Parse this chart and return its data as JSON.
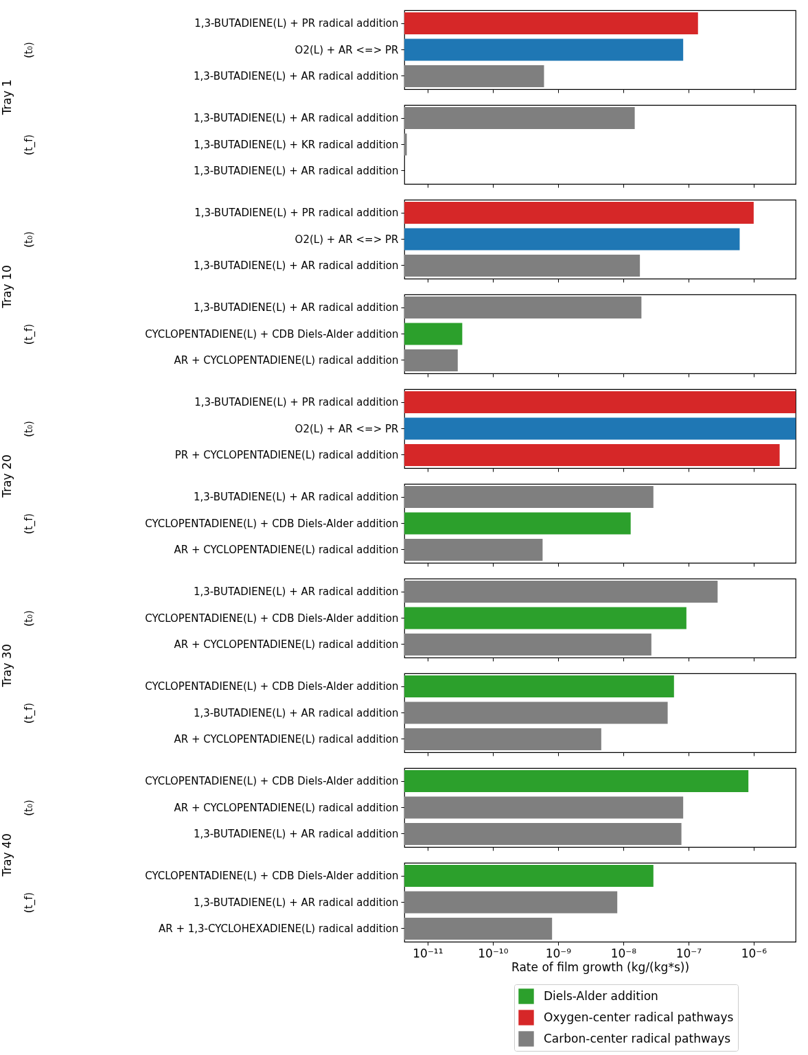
{
  "chart_data": [
    {
      "type": "bar",
      "orientation": "horizontal",
      "log": "x",
      "ylabel": "(t₀)",
      "annotations": [
        "Tray 1"
      ],
      "tick_labels": "y",
      "legend": false,
      "xlim": [
        4.4e-12,
        4.4e-06
      ],
      "xticks": [
        1e-11,
        1e-10,
        1e-09,
        1e-08,
        1e-07,
        1e-06
      ],
      "categories": [
        "1,3-BUTADIENE(L) + PR radical addition",
        "O2(L) + AR <=> PR",
        "1,3-BUTADIENE(L) + AR radical addition"
      ],
      "series": [
        {
          "color": "#d62728",
          "values": [
            1.4e-07,
            null,
            null
          ]
        },
        {
          "color": "#1f77b4",
          "values": [
            null,
            8.3e-08,
            null
          ]
        },
        {
          "color": "#7f7f7f",
          "values": [
            null,
            null,
            6.1e-10
          ]
        }
      ]
    },
    {
      "type": "bar",
      "orientation": "horizontal",
      "log": "x",
      "ylabel": "(t_f)",
      "tick_labels": "y",
      "legend": false,
      "xlim": [
        4.4e-12,
        4.4e-06
      ],
      "xticks": [
        1e-11,
        1e-10,
        1e-09,
        1e-08,
        1e-07,
        1e-06
      ],
      "categories": [
        "1,3-BUTADIENE(L) + AR radical addition",
        "1,3-BUTADIENE(L) + KR radical addition",
        "1,3-BUTADIENE(L) + AR radical addition"
      ],
      "series": [
        {
          "color": "#7f7f7f",
          "values": [
            1.5e-08,
            4.8e-12,
            null
          ]
        }
      ]
    },
    {
      "type": "bar",
      "orientation": "horizontal",
      "log": "x",
      "ylabel": "(t₀)",
      "annotations": [
        "Tray 10"
      ],
      "tick_labels": "y",
      "legend": false,
      "xlim": [
        4.4e-12,
        4.4e-06
      ],
      "xticks": [
        1e-11,
        1e-10,
        1e-09,
        1e-08,
        1e-07,
        1e-06
      ],
      "categories": [
        "1,3-BUTADIENE(L) + PR radical addition",
        "O2(L) + AR <=> PR",
        "1,3-BUTADIENE(L) + AR radical addition"
      ],
      "series": [
        {
          "color": "#d62728",
          "values": [
            1e-06,
            null,
            null
          ]
        },
        {
          "color": "#1f77b4",
          "values": [
            null,
            6.1e-07,
            null
          ]
        },
        {
          "color": "#7f7f7f",
          "values": [
            null,
            null,
            1.8e-08
          ]
        }
      ]
    },
    {
      "type": "bar",
      "orientation": "horizontal",
      "log": "x",
      "ylabel": "(t_f)",
      "tick_labels": "y",
      "legend": false,
      "xlim": [
        4.4e-12,
        4.4e-06
      ],
      "xticks": [
        1e-11,
        1e-10,
        1e-09,
        1e-08,
        1e-07,
        1e-06
      ],
      "categories": [
        "1,3-BUTADIENE(L) + AR radical addition",
        "CYCLOPENTADIENE(L) + CDB Diels-Alder addition",
        "AR + CYCLOPENTADIENE(L) radical addition"
      ],
      "series": [
        {
          "color": "#2ca02c",
          "values": [
            null,
            3.4e-11,
            null
          ]
        },
        {
          "color": "#7f7f7f",
          "values": [
            1.9e-08,
            null,
            2.9e-11
          ]
        }
      ]
    },
    {
      "type": "bar",
      "orientation": "horizontal",
      "log": "x",
      "ylabel": "(t₀)",
      "annotations": [
        "Tray 20"
      ],
      "tick_labels": "y",
      "legend": false,
      "xlim": [
        4.4e-12,
        4.4e-06
      ],
      "xticks": [
        1e-11,
        1e-10,
        1e-09,
        1e-08,
        1e-07,
        1e-06
      ],
      "categories": [
        "1,3-BUTADIENE(L) + PR radical addition",
        "O2(L) + AR <=> PR",
        "PR + CYCLOPENTADIENE(L) radical addition"
      ],
      "series": [
        {
          "color": "#d62728",
          "values": [
            4.4e-06,
            null,
            2.5e-06
          ]
        },
        {
          "color": "#1f77b4",
          "values": [
            null,
            4.4e-06,
            null
          ]
        }
      ]
    },
    {
      "type": "bar",
      "orientation": "horizontal",
      "log": "x",
      "ylabel": "(t_f)",
      "tick_labels": "y",
      "legend": false,
      "xlim": [
        4.4e-12,
        4.4e-06
      ],
      "xticks": [
        1e-11,
        1e-10,
        1e-09,
        1e-08,
        1e-07,
        1e-06
      ],
      "categories": [
        "1,3-BUTADIENE(L) + AR radical addition",
        "CYCLOPENTADIENE(L) + CDB Diels-Alder addition",
        "AR + CYCLOPENTADIENE(L) radical addition"
      ],
      "series": [
        {
          "color": "#2ca02c",
          "values": [
            null,
            1.3e-08,
            null
          ]
        },
        {
          "color": "#7f7f7f",
          "values": [
            2.9e-08,
            null,
            5.8e-10
          ]
        }
      ]
    },
    {
      "type": "bar",
      "orientation": "horizontal",
      "log": "x",
      "ylabel": "(t₀)",
      "annotations": [
        "Tray 30"
      ],
      "tick_labels": "y",
      "legend": false,
      "xlim": [
        4.4e-12,
        4.4e-06
      ],
      "xticks": [
        1e-11,
        1e-10,
        1e-09,
        1e-08,
        1e-07,
        1e-06
      ],
      "categories": [
        "1,3-BUTADIENE(L) + AR radical addition",
        "CYCLOPENTADIENE(L) + CDB Diels-Alder addition",
        "AR + CYCLOPENTADIENE(L) radical addition"
      ],
      "series": [
        {
          "color": "#2ca02c",
          "values": [
            null,
            9.3e-08,
            null
          ]
        },
        {
          "color": "#7f7f7f",
          "values": [
            2.8e-07,
            null,
            2.7e-08
          ]
        }
      ]
    },
    {
      "type": "bar",
      "orientation": "horizontal",
      "log": "x",
      "ylabel": "(t_f)",
      "tick_labels": "y",
      "legend": false,
      "xlim": [
        4.4e-12,
        4.4e-06
      ],
      "xticks": [
        1e-11,
        1e-10,
        1e-09,
        1e-08,
        1e-07,
        1e-06
      ],
      "categories": [
        "CYCLOPENTADIENE(L) + CDB Diels-Alder addition",
        "1,3-BUTADIENE(L) + AR radical addition",
        "AR + CYCLOPENTADIENE(L) radical addition"
      ],
      "series": [
        {
          "color": "#2ca02c",
          "values": [
            6e-08,
            null,
            null
          ]
        },
        {
          "color": "#7f7f7f",
          "values": [
            null,
            4.8e-08,
            4.6e-09
          ]
        }
      ]
    },
    {
      "type": "bar",
      "orientation": "horizontal",
      "log": "x",
      "ylabel": "(t₀)",
      "annotations": [
        "Tray 40"
      ],
      "tick_labels": "y",
      "legend": false,
      "xlim": [
        4.4e-12,
        4.4e-06
      ],
      "xticks": [
        1e-11,
        1e-10,
        1e-09,
        1e-08,
        1e-07,
        1e-06
      ],
      "categories": [
        "CYCLOPENTADIENE(L) + CDB Diels-Alder addition",
        "AR + CYCLOPENTADIENE(L) radical addition",
        "1,3-BUTADIENE(L) + AR radical addition"
      ],
      "series": [
        {
          "color": "#2ca02c",
          "values": [
            8.3e-07,
            null,
            null
          ]
        },
        {
          "color": "#7f7f7f",
          "values": [
            null,
            8.3e-08,
            7.8e-08
          ]
        }
      ]
    },
    {
      "type": "bar",
      "orientation": "horizontal",
      "log": "x",
      "ylabel": "(t_f)",
      "xlabel": "Rate of film growth (kg/(kg*s))",
      "legend": "bottom right",
      "xlim": [
        4.4e-12,
        4.4e-06
      ],
      "xticks": [
        {
          "value": 1e-11,
          "label": "10⁻¹¹"
        },
        {
          "value": 1e-10,
          "label": "10⁻¹⁰"
        },
        {
          "value": 1e-09,
          "label": "10⁻⁹"
        },
        {
          "value": 1e-08,
          "label": "10⁻⁸"
        },
        {
          "value": 1e-07,
          "label": "10⁻⁷"
        },
        {
          "value": 1e-06,
          "label": "10⁻⁶"
        }
      ],
      "categories": [
        "CYCLOPENTADIENE(L) + CDB Diels-Alder addition",
        "1,3-BUTADIENE(L) + AR radical addition",
        "AR + 1,3-CYCLOHEXADIENE(L) radical addition"
      ],
      "series": [
        {
          "name": "Diels-Alder addition",
          "color": "#2ca02c",
          "values": [
            2.9e-08,
            null,
            null
          ]
        },
        {
          "name": "Oxygen-center radical pathways",
          "color": "#d62728",
          "values": [
            null,
            null,
            null
          ]
        },
        {
          "name": "Carbon-center radical pathways",
          "color": "#7f7f7f",
          "values": [
            null,
            8.1e-09,
            8.1e-10
          ]
        }
      ]
    }
  ]
}
